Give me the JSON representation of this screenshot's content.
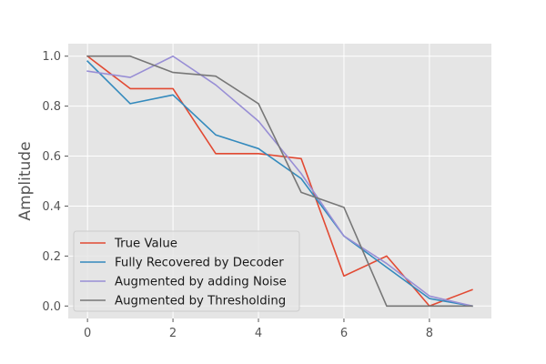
{
  "chart_data": {
    "type": "line",
    "title": "",
    "xlabel": "",
    "ylabel": "Amplitude",
    "xlim": [
      -0.45,
      9.45
    ],
    "ylim": [
      -0.05,
      1.05
    ],
    "xticks": [
      0,
      2,
      4,
      6,
      8
    ],
    "yticks": [
      0.0,
      0.2,
      0.4,
      0.6,
      0.8,
      1.0
    ],
    "xtick_labels": [
      "0",
      "2",
      "4",
      "6",
      "8"
    ],
    "ytick_labels": [
      "0.0",
      "0.2",
      "0.4",
      "0.6",
      "0.8",
      "1.0"
    ],
    "grid": true,
    "legend_position": "lower-left",
    "x": [
      0,
      1,
      2,
      3,
      4,
      5,
      6,
      7,
      8,
      9
    ],
    "series": [
      {
        "name": "True Value",
        "color": "#E24A33",
        "values": [
          1.0,
          0.87,
          0.87,
          0.61,
          0.61,
          0.59,
          0.12,
          0.2,
          0.0,
          0.065
        ]
      },
      {
        "name": "Fully Recovered by Decoder",
        "color": "#348ABD",
        "values": [
          0.98,
          0.81,
          0.845,
          0.685,
          0.63,
          0.51,
          0.28,
          0.155,
          0.03,
          0.0
        ]
      },
      {
        "name": "Augmented by adding Noise",
        "color": "#988ED5",
        "values": [
          0.94,
          0.915,
          1.0,
          0.885,
          0.74,
          0.53,
          0.28,
          0.17,
          0.04,
          0.0
        ]
      },
      {
        "name": "Augmented by Thresholding",
        "color": "#777777",
        "values": [
          1.0,
          1.0,
          0.935,
          0.92,
          0.81,
          0.455,
          0.395,
          0.0,
          0.0,
          0.0
        ]
      }
    ]
  }
}
